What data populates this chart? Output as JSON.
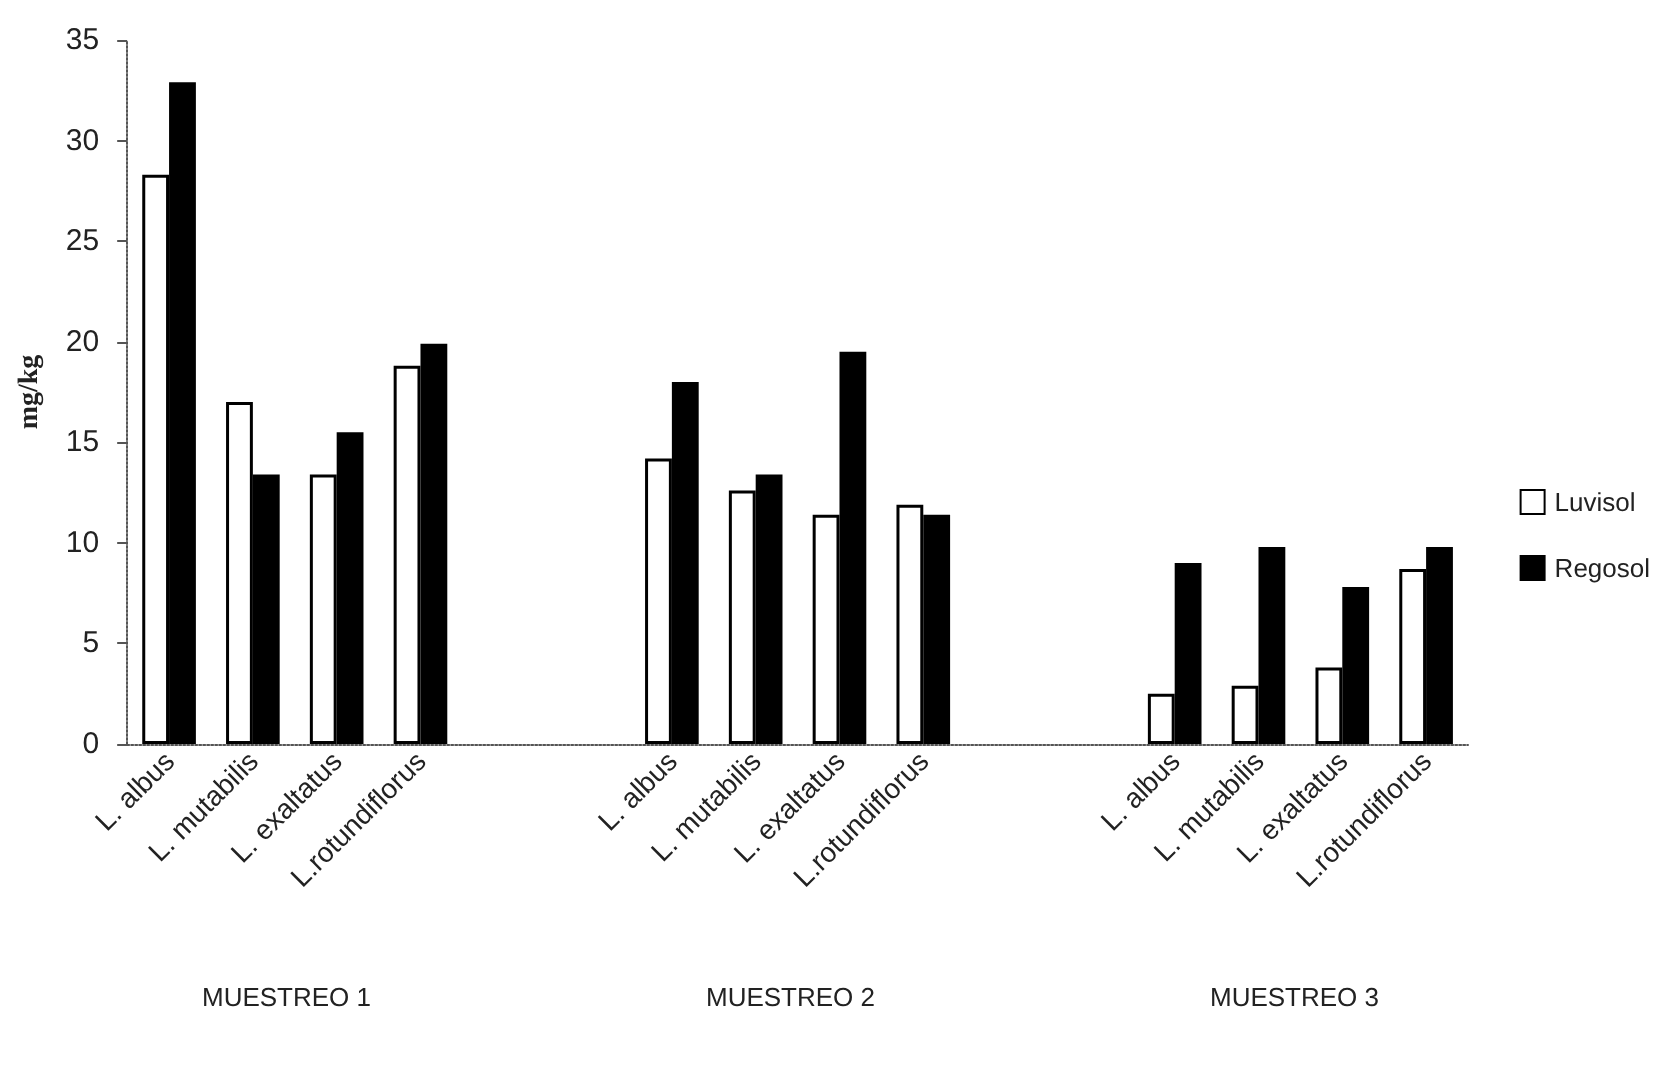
{
  "chart_data": {
    "type": "bar",
    "ylabel": "mg/kg",
    "categories": [
      "L. albus",
      "L. mutabilis",
      "L. exaltatus",
      "L.rotundiflorus",
      null,
      null,
      "L. albus",
      "L. mutabilis",
      "L. exaltatus",
      "L.rotundiflorus",
      null,
      null,
      "L. albus",
      "L. mutabilis",
      "L. exaltatus",
      "L.rotundiflorus"
    ],
    "series": [
      {
        "name": "Luvisol",
        "color": "#ffffff",
        "values": [
          28.3,
          17.0,
          13.4,
          18.8,
          null,
          null,
          14.2,
          12.6,
          11.4,
          11.9,
          null,
          null,
          2.5,
          2.9,
          3.8,
          8.7
        ]
      },
      {
        "name": "Regosol",
        "color": "#000000",
        "values": [
          32.9,
          13.4,
          15.5,
          19.9,
          null,
          null,
          18.0,
          13.4,
          19.5,
          11.4,
          null,
          null,
          9.0,
          9.8,
          7.8,
          9.8
        ]
      }
    ],
    "ylim": [
      0,
      35
    ],
    "yticks": [
      0,
      5,
      10,
      15,
      20,
      25,
      30,
      35
    ],
    "grid": false,
    "legend": "right",
    "annotations": [
      "MUESTREO 1",
      "MUESTREO 2",
      "MUESTREO 3"
    ]
  }
}
